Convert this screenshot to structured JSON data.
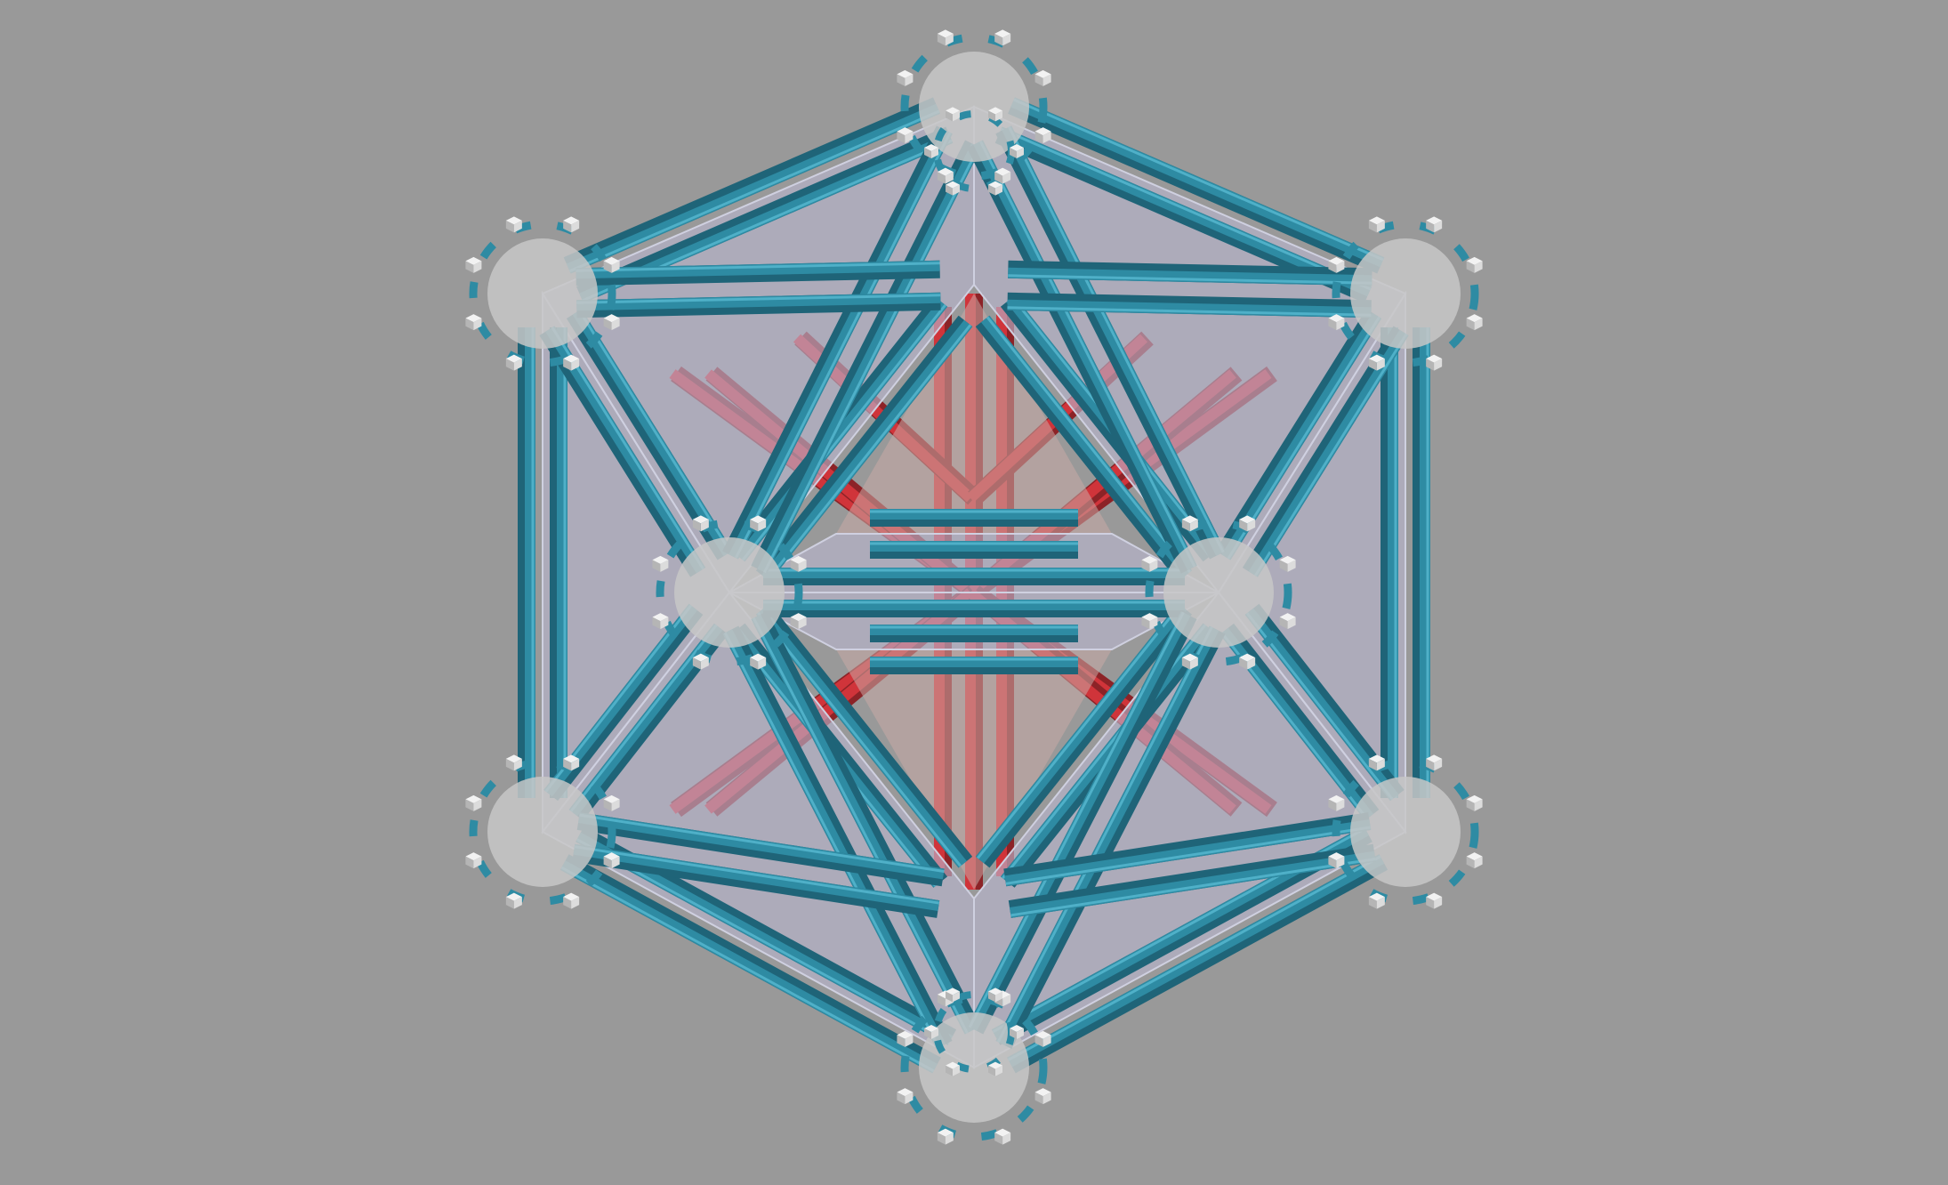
{
  "scene": {
    "background_color": "#999999",
    "subject": "polyhedron-strut-model",
    "colors": {
      "outer_strut": "#2e8ba3",
      "outer_strut_shadow": "#1f6478",
      "outer_strut_highlight": "#4fb0c8",
      "panel": "#b9b6cf",
      "panel_light": "#cfd0e0",
      "inner_strut": "#d0343a",
      "inner_strut_shadow": "#8c2327",
      "inner_panel": "#c9aaa5",
      "node": "#f2f2f2",
      "node_shadow": "#b5b5b5",
      "hub": "#c7c7c7"
    }
  }
}
